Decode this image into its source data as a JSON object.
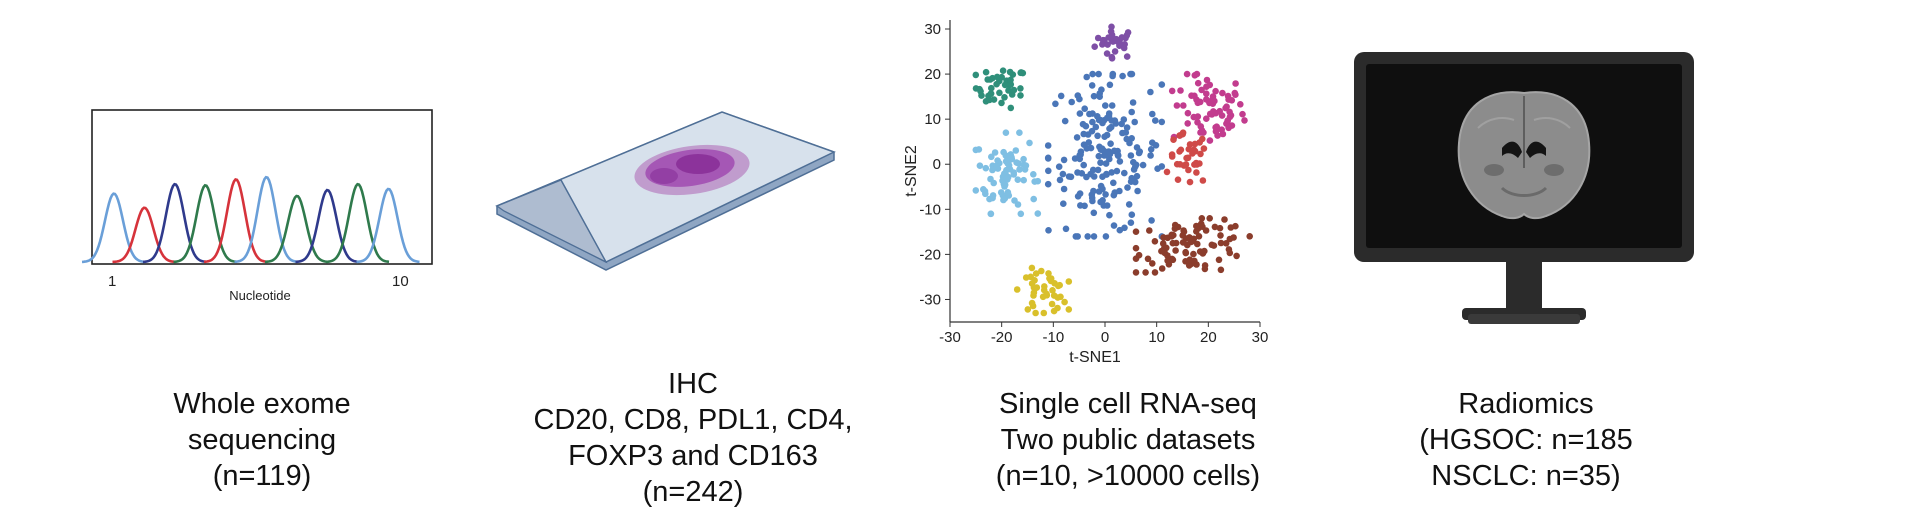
{
  "panels": {
    "wes": {
      "caption": [
        "Whole exome",
        "sequencing",
        "(n=119)"
      ],
      "chart": {
        "xlabel": "Nucleotide",
        "tick_start": "1",
        "tick_end": "10",
        "colors": {
          "blue": "#6a9fd8",
          "red": "#d6333b",
          "navy": "#2f3a8c",
          "green": "#2f7a4c"
        }
      }
    },
    "ihc": {
      "caption": [
        "IHC",
        "CD20, CD8, PDL1, CD4,",
        "FOXP3 and CD163",
        "(n=242)"
      ],
      "colors": {
        "slide": "#c9d4e2",
        "stain": "#9b3fa5"
      }
    },
    "scrna": {
      "caption": [
        "Single cell RNA-seq",
        "Two public datasets",
        "(n=10, >10000 cells)"
      ]
    },
    "radiomics": {
      "caption": [
        "Radiomics",
        "(HGSOC: n=185",
        "NSCLC: n=35)"
      ],
      "colors": {
        "monitor": "#2b2b2b",
        "screen": "#111111",
        "brain": "#8a8a8a"
      }
    }
  },
  "chart_data": {
    "type": "scatter",
    "title": "",
    "xlabel": "t-SNE1",
    "ylabel": "t-SNE2",
    "xlim": [
      -30,
      30
    ],
    "ylim": [
      -35,
      32
    ],
    "x_ticks": [
      -30,
      -20,
      -10,
      0,
      10,
      20,
      30
    ],
    "y_ticks": [
      30,
      20,
      10,
      0,
      -10,
      -20,
      -30
    ],
    "series": [
      {
        "name": "cluster-purple",
        "color": "#7e4fa6",
        "center": [
          2,
          27
        ],
        "spread": [
          4,
          3.5
        ],
        "count": 28
      },
      {
        "name": "cluster-teal",
        "color": "#2f8f7a",
        "center": [
          -20,
          17
        ],
        "spread": [
          5,
          4.5
        ],
        "count": 40
      },
      {
        "name": "cluster-magenta",
        "color": "#c23c8e",
        "center": [
          20,
          12
        ],
        "spread": [
          7,
          8
        ],
        "count": 70
      },
      {
        "name": "cluster-lightblue",
        "color": "#7fbfe3",
        "center": [
          -19,
          -2
        ],
        "spread": [
          6,
          9
        ],
        "count": 75
      },
      {
        "name": "cluster-blue",
        "color": "#4a76b8",
        "center": [
          0,
          2
        ],
        "spread": [
          11,
          18
        ],
        "count": 180
      },
      {
        "name": "cluster-red",
        "color": "#cf4a48",
        "center": [
          16,
          1
        ],
        "spread": [
          4,
          6
        ],
        "count": 35
      },
      {
        "name": "cluster-brown",
        "color": "#8b3d2c",
        "center": [
          17,
          -18
        ],
        "spread": [
          11,
          6
        ],
        "count": 90
      },
      {
        "name": "cluster-yellow",
        "color": "#d9c02b",
        "center": [
          -12,
          -28
        ],
        "spread": [
          5,
          5
        ],
        "count": 40
      }
    ]
  }
}
